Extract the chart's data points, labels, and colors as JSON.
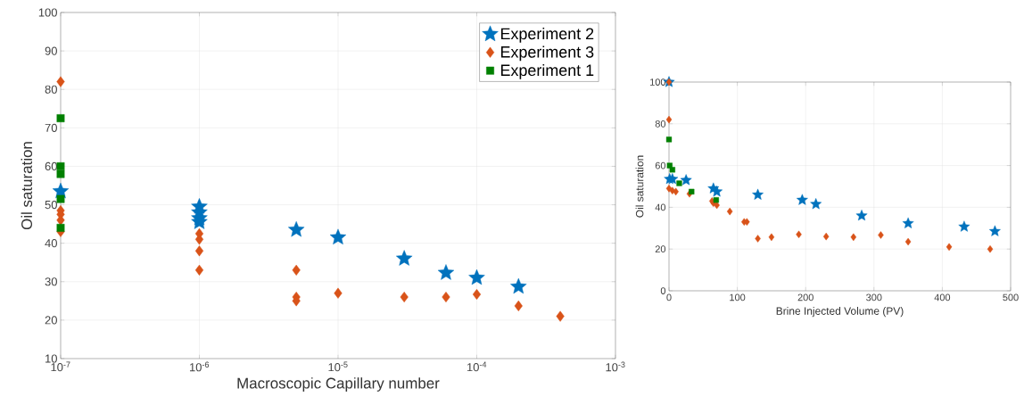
{
  "chart_data": [
    {
      "type": "scatter",
      "xlabel": "Macroscopic Capillary number",
      "ylabel": "Oil saturation",
      "log": "x",
      "grid": true,
      "legend": "top right",
      "xlim": [
        1e-07,
        0.001
      ],
      "ylim": [
        10,
        100
      ],
      "xticks": [
        {
          "value": 1e-07,
          "label": "10$^{-7}$"
        },
        {
          "value": 1e-06,
          "label": "10$^{-6}$"
        },
        {
          "value": 1e-05,
          "label": "10$^{-5}$"
        },
        {
          "value": 0.0001,
          "label": "10$^{-4}$"
        },
        {
          "value": 0.001,
          "label": "10$^{-3}$"
        }
      ],
      "yticks": [
        10,
        20,
        30,
        40,
        50,
        60,
        70,
        80,
        90,
        100
      ],
      "series": [
        {
          "name": "Experiment 2",
          "color": "#0072bd",
          "marker": "star",
          "x": [
            1e-07,
            1e-06,
            1e-06,
            1e-06,
            1e-06,
            5e-06,
            1e-05,
            3e-05,
            6e-05,
            0.0001,
            0.0002
          ],
          "values": [
            53.5,
            49.5,
            48,
            46.5,
            45.5,
            43.5,
            41.5,
            36,
            32.3,
            31,
            28.7
          ]
        },
        {
          "name": "Experiment 3",
          "color": "#d95319",
          "marker": "diamond",
          "x": [
            1e-07,
            1e-07,
            1e-07,
            1e-07,
            1e-07,
            1e-06,
            1e-06,
            1e-06,
            1e-06,
            5e-06,
            5e-06,
            5e-06,
            1e-05,
            3e-05,
            6e-05,
            0.0001,
            0.0002,
            0.0004
          ],
          "values": [
            82,
            48.5,
            47.5,
            46,
            43,
            42.5,
            41,
            38,
            33,
            33,
            26,
            25,
            27,
            26,
            26,
            26.7,
            23.7,
            21
          ]
        },
        {
          "name": "Experiment 1",
          "color": "#008000",
          "marker": "square",
          "x": [
            1e-07,
            1e-07,
            1e-07,
            1e-07,
            1e-07
          ],
          "values": [
            72.5,
            60,
            58,
            51.5,
            44
          ]
        }
      ]
    },
    {
      "type": "scatter",
      "xlabel": "Brine Injected Volume (PV)",
      "ylabel": "Oil saturation",
      "grid": true,
      "xlim": [
        0,
        500
      ],
      "ylim": [
        0,
        100
      ],
      "xticks": [
        0,
        100,
        200,
        300,
        400,
        500
      ],
      "yticks": [
        0,
        20,
        40,
        60,
        80,
        100
      ],
      "series": [
        {
          "color": "#0072bd",
          "marker": "star",
          "x": [
            0,
            1,
            5,
            25,
            65,
            70,
            130,
            195,
            215,
            282,
            350,
            432,
            477
          ],
          "values": [
            100,
            53.5,
            53.5,
            53,
            49,
            47.5,
            46,
            43.5,
            41.5,
            36,
            32.3,
            30.7,
            28.5
          ]
        },
        {
          "color": "#d95319",
          "marker": "diamond",
          "x": [
            0,
            0,
            0,
            5,
            10,
            30,
            63,
            65,
            70,
            89,
            110,
            114,
            130,
            150,
            190,
            230,
            270,
            310,
            350,
            410,
            470
          ],
          "values": [
            100,
            82,
            49,
            48,
            47.5,
            46.5,
            43,
            42,
            41,
            38,
            33,
            33,
            25,
            25.7,
            27,
            26,
            25.7,
            26.7,
            23.5,
            21,
            20
          ]
        },
        {
          "color": "#008000",
          "marker": "square",
          "x": [
            0,
            1,
            5,
            15,
            33,
            69
          ],
          "values": [
            72.5,
            60,
            58,
            51.5,
            47.5,
            43.5
          ]
        }
      ]
    }
  ]
}
